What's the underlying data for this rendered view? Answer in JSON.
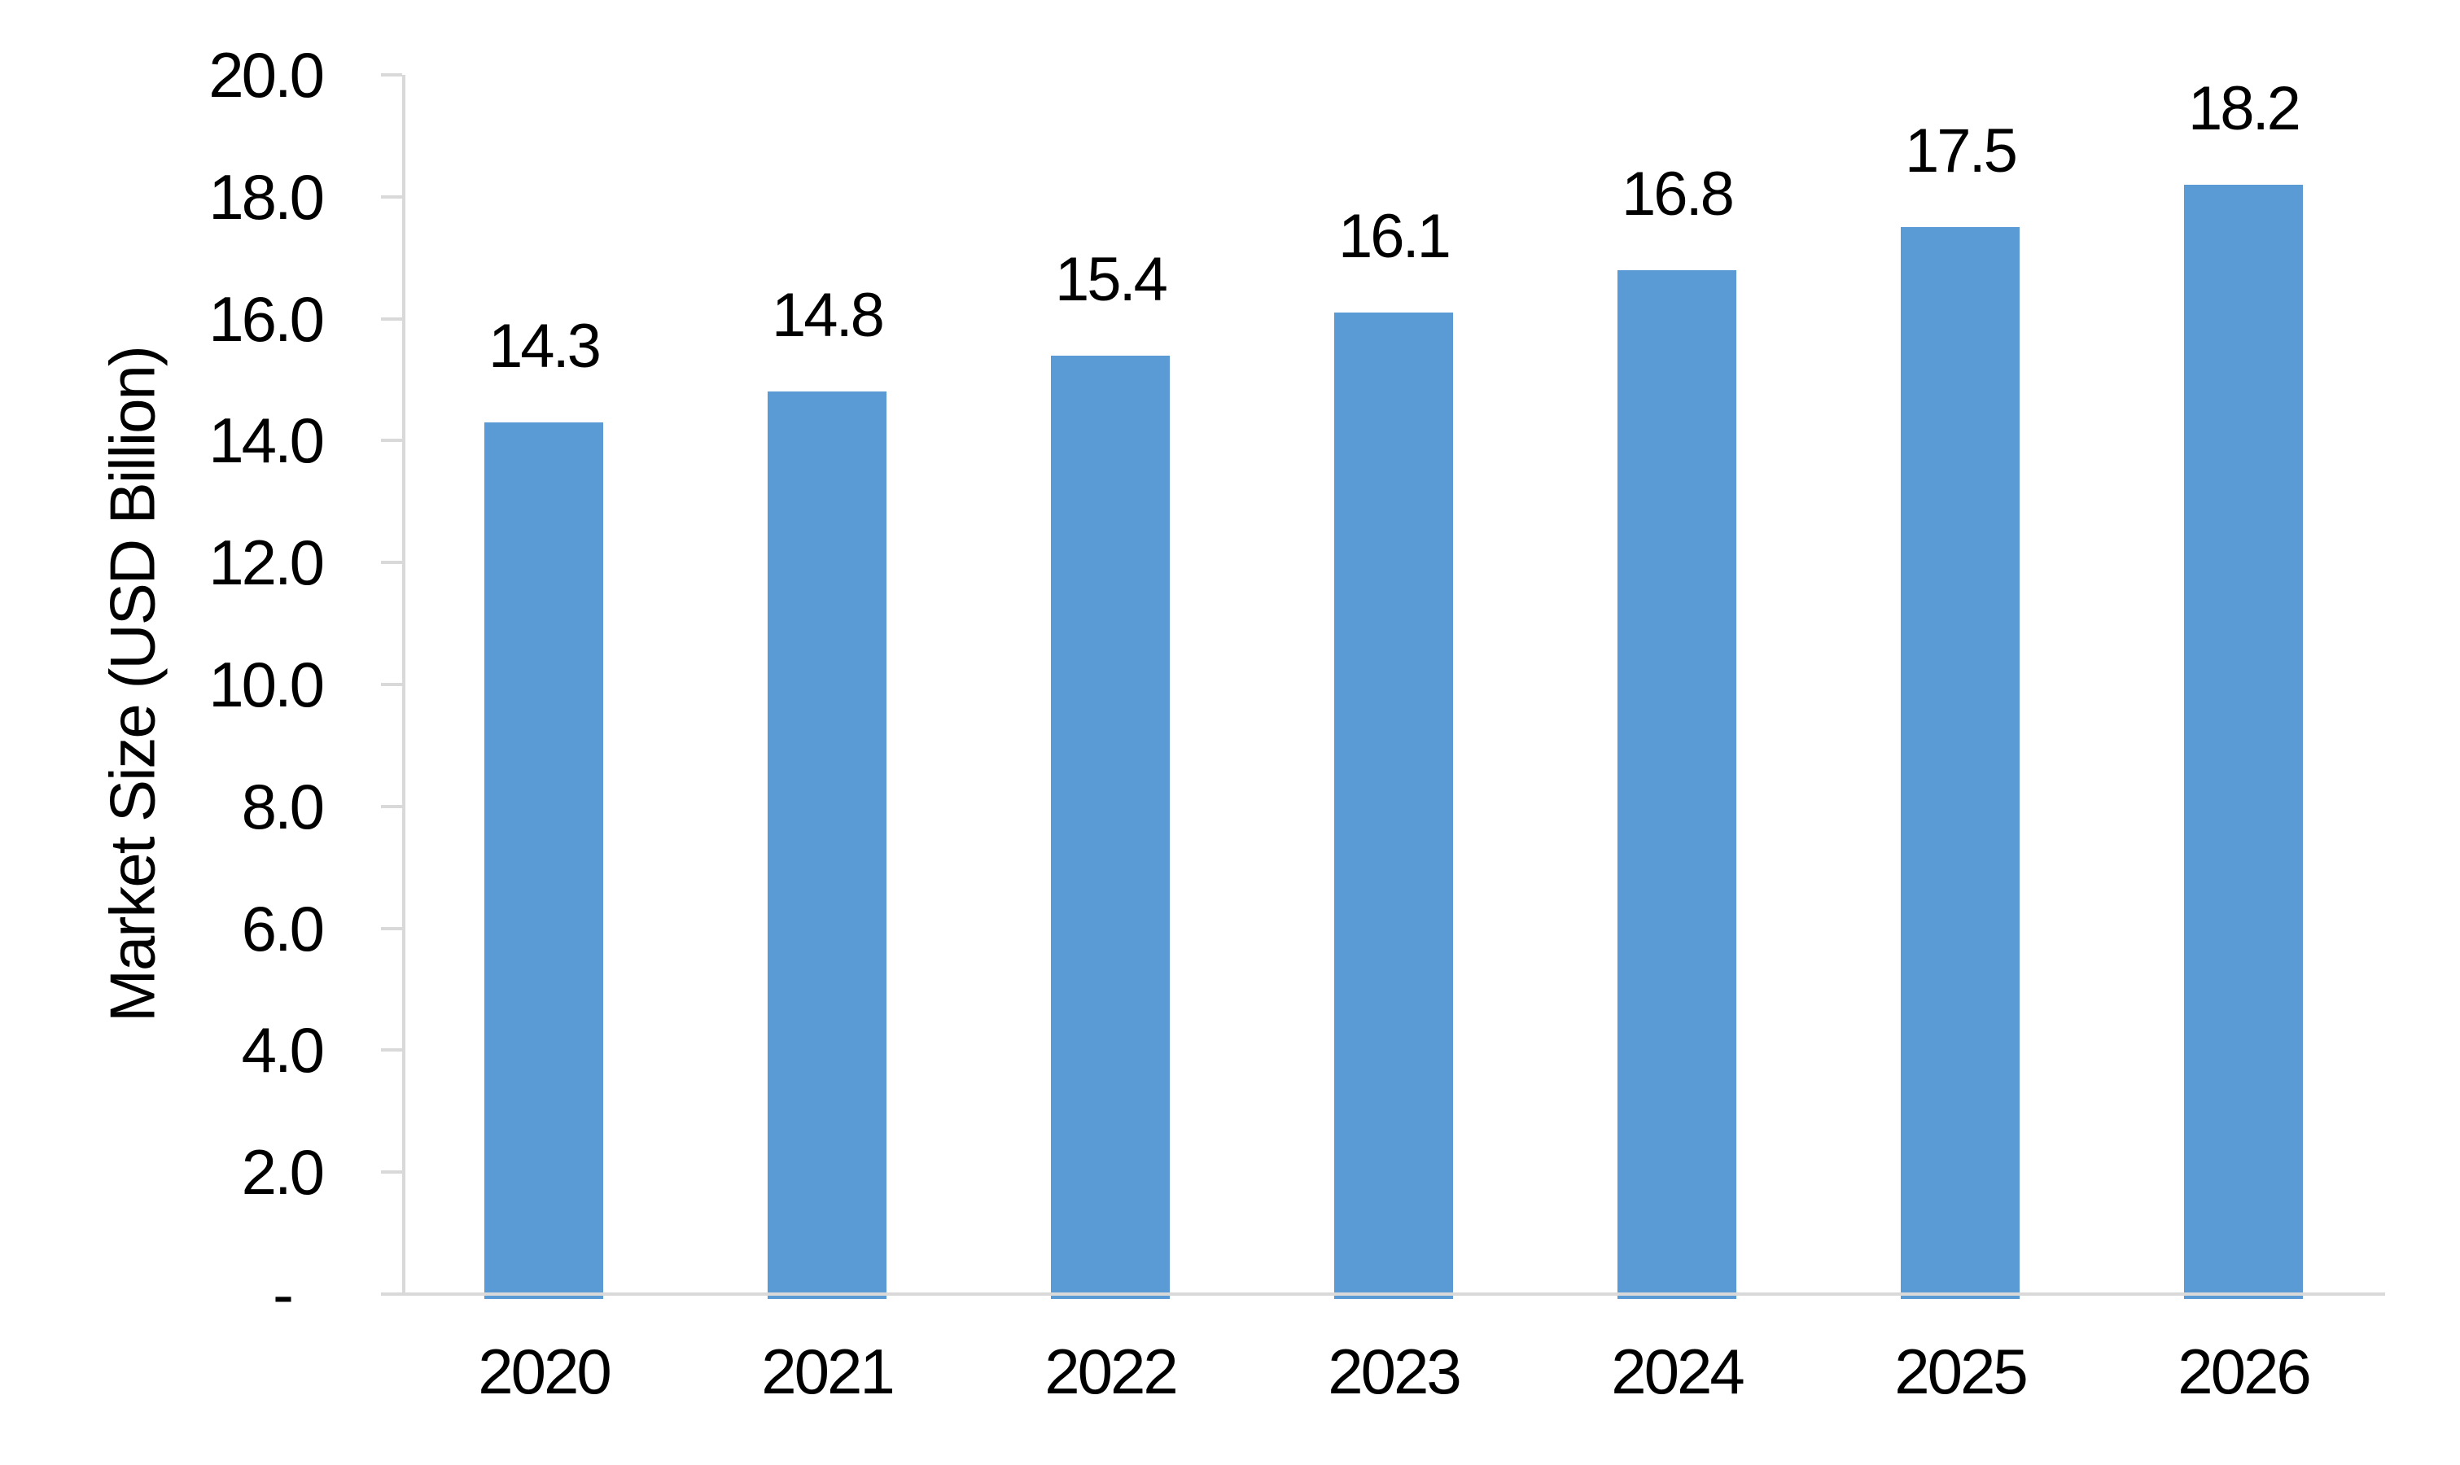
{
  "chart_data": {
    "type": "bar",
    "title": "",
    "categories": [
      "2020",
      "2021",
      "2022",
      "2023",
      "2024",
      "2025",
      "2026"
    ],
    "values": [
      14.3,
      14.8,
      15.4,
      16.1,
      16.8,
      17.5,
      18.2
    ],
    "data_labels": [
      "14.3",
      "14.8",
      "15.4",
      "16.1",
      "16.8",
      "17.5",
      "18.2"
    ],
    "xlabel": "",
    "ylabel": "Market Size (USD Billion)",
    "ylim": [
      0,
      20
    ],
    "ytick_step": 2,
    "yticks": [
      {
        "value": 0,
        "label": "-"
      },
      {
        "value": 2,
        "label": "2.0"
      },
      {
        "value": 4,
        "label": "4.0"
      },
      {
        "value": 6,
        "label": "6.0"
      },
      {
        "value": 8,
        "label": "8.0"
      },
      {
        "value": 10,
        "label": "10.0"
      },
      {
        "value": 12,
        "label": "12.0"
      },
      {
        "value": 14,
        "label": "14.0"
      },
      {
        "value": 16,
        "label": "16.0"
      },
      {
        "value": 18,
        "label": "18.0"
      },
      {
        "value": 20,
        "label": "20.0"
      }
    ],
    "grid": false,
    "legend": null,
    "colors": {
      "bar": "#5b9bd5",
      "axis": "#d9d9d9",
      "text": "#000000"
    }
  }
}
